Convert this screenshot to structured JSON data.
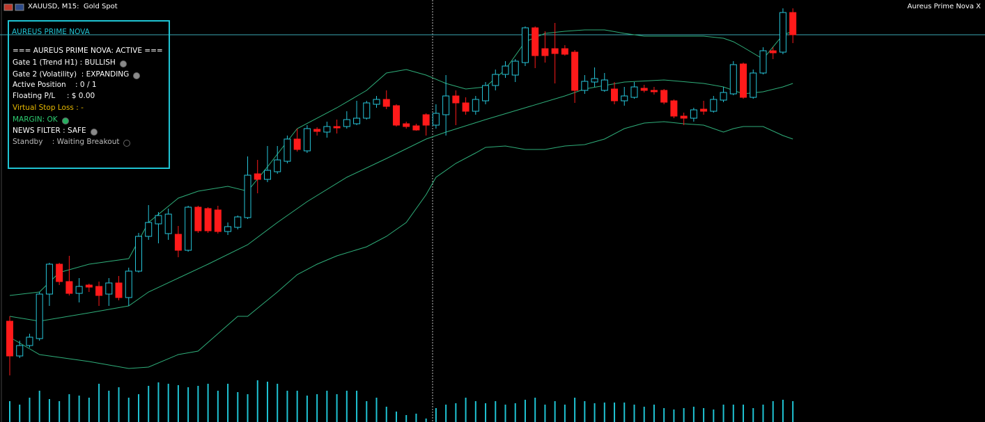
{
  "header": {
    "symbol": "XAUUSD, M15:  Gold Spot",
    "indicator": "Aureus Prime Nova X"
  },
  "panel": {
    "title": "AUREUS PRIME NOVA",
    "lines": [
      {
        "text": "=== AUREUS PRIME NOVA: ACTIVE ===",
        "color": "#ffffff"
      },
      {
        "text": "Gate 1 (Trend H1) : BULLISH",
        "color": "#ffffff",
        "dot": "#8a8a8a"
      },
      {
        "text": "Gate 2 (Volatility)  : EXPANDING",
        "color": "#ffffff",
        "dot": "#8a8a8a"
      },
      {
        "text": "Active Position    : 0 / 1",
        "color": "#ffffff"
      },
      {
        "text": "Floating P/L     : $ 0.00",
        "color": "#ffffff"
      },
      {
        "text": "Virtual Stop Loss : -",
        "color": "#e6b800"
      },
      {
        "text": "MARGIN: OK",
        "color": "#2ecc71",
        "dot": "#27ae60"
      },
      {
        "text": "NEWS FILTER : SAFE",
        "color": "#ffffff",
        "dot": "#8a8a8a"
      },
      {
        "text": "Standby    : Waiting Breakout",
        "color": "#bbbbbb",
        "dot": "#000000"
      }
    ]
  },
  "chart_data": {
    "type": "candlestick",
    "ylim": [
      0,
      600
    ],
    "up_color": "#26c6da",
    "down_color": "#ff1a1a",
    "candles": {
      "open": [
        138,
        88,
        103,
        113,
        177,
        220,
        195,
        178,
        190,
        188,
        177,
        193,
        172,
        210,
        260,
        278,
        264,
        263,
        240,
        302,
        300,
        298,
        267,
        273,
        287,
        350,
        342,
        353,
        368,
        400,
        383,
        414,
        410,
        418,
        418,
        422,
        430,
        450,
        457,
        448,
        422,
        419,
        435,
        420,
        435,
        462,
        452,
        440,
        455,
        477,
        493,
        492,
        510,
        560,
        530,
        530,
        530,
        525,
        470,
        482,
        470,
        472,
        455,
        460,
        473,
        470,
        470,
        455,
        433,
        430,
        443,
        440,
        456,
        465,
        508,
        460,
        495,
        527,
        525,
        582
      ],
      "high": [
        145,
        110,
        120,
        180,
        222,
        222,
        232,
        200,
        192,
        195,
        200,
        203,
        215,
        265,
        305,
        295,
        300,
        275,
        304,
        304,
        302,
        304,
        280,
        290,
        375,
        370,
        390,
        390,
        405,
        415,
        420,
        417,
        425,
        428,
        440,
        455,
        455,
        462,
        470,
        450,
        425,
        422,
        437,
        450,
        492,
        470,
        460,
        462,
        482,
        500,
        512,
        515,
        562,
        562,
        555,
        567,
        535,
        528,
        492,
        503,
        495,
        482,
        475,
        482,
        478,
        475,
        472,
        457,
        438,
        445,
        455,
        462,
        475,
        512,
        510,
        500,
        532,
        532,
        588,
        588
      ],
      "low": [
        60,
        85,
        100,
        110,
        160,
        190,
        175,
        165,
        180,
        160,
        160,
        168,
        160,
        208,
        255,
        250,
        255,
        230,
        238,
        265,
        265,
        264,
        262,
        270,
        285,
        322,
        338,
        350,
        365,
        382,
        380,
        405,
        402,
        408,
        415,
        420,
        428,
        445,
        443,
        418,
        415,
        412,
        405,
        415,
        405,
        420,
        435,
        435,
        450,
        470,
        488,
        482,
        505,
        502,
        510,
        480,
        520,
        452,
        465,
        475,
        468,
        450,
        448,
        458,
        467,
        464,
        450,
        430,
        420,
        425,
        435,
        438,
        453,
        463,
        458,
        458,
        493,
        515,
        522,
        538
      ],
      "close": [
        88,
        103,
        115,
        177,
        220,
        195,
        178,
        188,
        187,
        175,
        193,
        172,
        210,
        260,
        280,
        290,
        292,
        240,
        302,
        268,
        268,
        267,
        274,
        288,
        348,
        342,
        355,
        370,
        400,
        385,
        415,
        411,
        418,
        416,
        428,
        430,
        452,
        457,
        447,
        420,
        418,
        413,
        420,
        437,
        462,
        452,
        440,
        457,
        477,
        493,
        505,
        512,
        560,
        520,
        520,
        523,
        522,
        470,
        483,
        487,
        485,
        455,
        462,
        475,
        470,
        468,
        453,
        433,
        430,
        442,
        440,
        457,
        467,
        507,
        460,
        495,
        527,
        524,
        582,
        550
      ]
    },
    "bands": [
      {
        "color": "#2fae7a",
        "x": [
          0,
          3,
          5,
          8,
          12,
          14,
          17,
          19,
          22,
          24,
          26,
          29,
          33,
          36,
          38,
          40,
          42,
          44,
          46,
          48,
          50,
          52,
          54,
          56,
          58,
          60,
          62,
          64,
          66,
          68,
          70,
          72,
          73,
          74,
          76,
          78,
          79
        ],
        "values": [
          175,
          180,
          208,
          220,
          228,
          280,
          315,
          325,
          332,
          325,
          360,
          415,
          445,
          470,
          495,
          500,
          492,
          480,
          472,
          475,
          500,
          540,
          552,
          555,
          557,
          557,
          552,
          548,
          548,
          548,
          548,
          545,
          540,
          532,
          515,
          550,
          555
        ]
      },
      {
        "color": "#2fae7a",
        "x": [
          0,
          3,
          8,
          12,
          14,
          17,
          20,
          24,
          27,
          30,
          34,
          38,
          42,
          44,
          48,
          52,
          56,
          58,
          62,
          66,
          70,
          72,
          74,
          76,
          78,
          79
        ],
        "values": [
          145,
          138,
          150,
          160,
          180,
          200,
          220,
          248,
          280,
          310,
          345,
          372,
          400,
          410,
          428,
          445,
          462,
          472,
          482,
          485,
          480,
          475,
          465,
          468,
          475,
          480
        ]
      },
      {
        "color": "#2fae7a",
        "x": [
          0,
          3,
          8,
          12,
          14,
          17,
          19,
          21,
          23,
          24,
          27,
          29,
          31,
          33,
          36,
          38,
          40,
          42,
          43,
          45,
          47,
          48,
          50,
          52,
          54,
          56,
          58,
          60,
          62,
          64,
          66,
          68,
          70,
          72,
          73,
          74,
          76,
          78,
          79
        ],
        "values": [
          115,
          90,
          80,
          70,
          72,
          90,
          95,
          120,
          145,
          145,
          180,
          205,
          220,
          232,
          245,
          260,
          280,
          320,
          345,
          365,
          380,
          388,
          390,
          385,
          385,
          390,
          392,
          400,
          415,
          423,
          425,
          422,
          420,
          410,
          415,
          418,
          418,
          405,
          400
        ]
      }
    ],
    "price_line": 550,
    "price_line_color": "#3aa8b4",
    "volume": {
      "ylim": [
        0,
        100
      ],
      "color": "#1fc4d4",
      "values": [
        30,
        25,
        35,
        45,
        33,
        30,
        40,
        38,
        35,
        55,
        45,
        50,
        35,
        40,
        52,
        57,
        55,
        53,
        50,
        52,
        55,
        45,
        55,
        43,
        40,
        60,
        58,
        55,
        45,
        45,
        38,
        40,
        45,
        40,
        45,
        45,
        30,
        35,
        22,
        15,
        10,
        12,
        5,
        20,
        25,
        27,
        35,
        30,
        27,
        30,
        25,
        27,
        32,
        35,
        25,
        30,
        25,
        35,
        30,
        27,
        28,
        28,
        28,
        25,
        22,
        25,
        20,
        18,
        20,
        22,
        20,
        18,
        25,
        25,
        25,
        20,
        25,
        30,
        32,
        30
      ]
    }
  }
}
